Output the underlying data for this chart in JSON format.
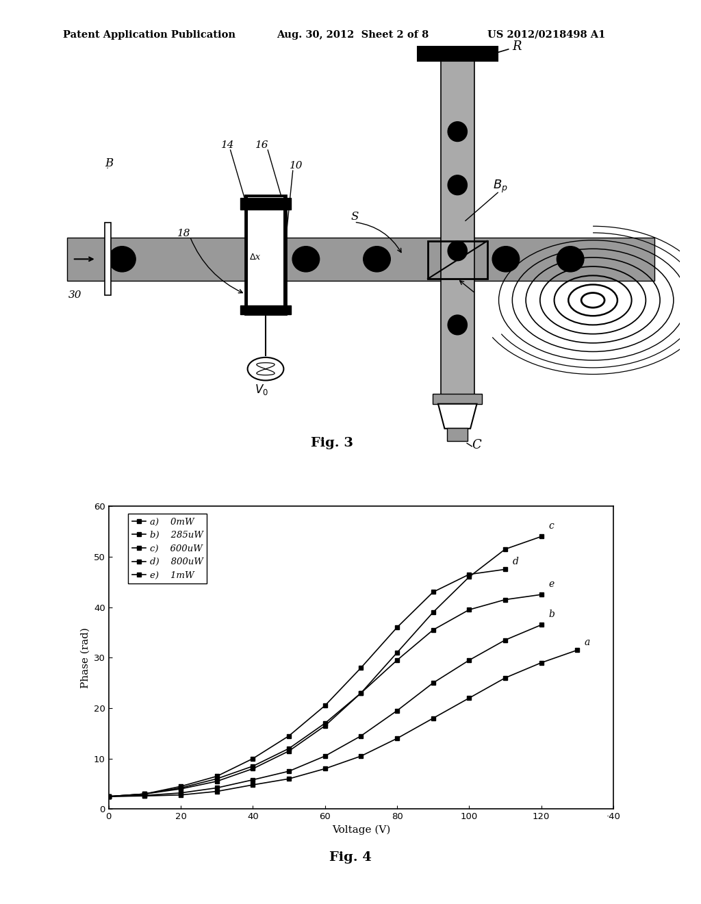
{
  "header_left": "Patent Application Publication",
  "header_middle": "Aug. 30, 2012  Sheet 2 of 8",
  "header_right": "US 2012/0218498 A1",
  "fig3_caption": "Fig. 3",
  "fig4_caption": "Fig. 4",
  "graph_xlabel": "Voltage (V)",
  "graph_ylabel": "Phase (rad)",
  "graph_xlim": [
    0,
    140
  ],
  "graph_ylim": [
    0,
    60
  ],
  "graph_xticks": [
    0,
    20,
    40,
    60,
    80,
    100,
    120,
    140
  ],
  "graph_xtick_labels": [
    "0",
    "20",
    "40",
    "60",
    "80",
    "100",
    "120",
    "·40"
  ],
  "graph_yticks": [
    0,
    10,
    20,
    30,
    40,
    50,
    60
  ],
  "legend_labels": [
    "a)    0mW",
    "b)    285uW",
    "c)    600uW",
    "d)    800uW",
    "e)    1mW"
  ],
  "series_a_x": [
    0,
    10,
    20,
    30,
    40,
    50,
    60,
    70,
    80,
    90,
    100,
    110,
    120,
    130
  ],
  "series_a_y": [
    2.5,
    2.6,
    2.8,
    3.5,
    4.8,
    6.0,
    8.0,
    10.5,
    14.0,
    18.0,
    22.0,
    26.0,
    29.0,
    31.5
  ],
  "series_b_x": [
    0,
    10,
    20,
    30,
    40,
    50,
    60,
    70,
    80,
    90,
    100,
    110,
    120
  ],
  "series_b_y": [
    2.5,
    2.7,
    3.2,
    4.2,
    5.8,
    7.5,
    10.5,
    14.5,
    19.5,
    25.0,
    29.5,
    33.5,
    36.5
  ],
  "series_c_x": [
    0,
    10,
    20,
    30,
    40,
    50,
    60,
    70,
    80,
    90,
    100,
    110,
    120
  ],
  "series_c_y": [
    2.5,
    3.0,
    4.0,
    5.5,
    8.0,
    11.5,
    16.5,
    23.0,
    31.0,
    39.0,
    46.0,
    51.5,
    54.0
  ],
  "series_d_x": [
    0,
    10,
    20,
    30,
    40,
    50,
    60,
    70,
    80,
    90,
    100,
    110
  ],
  "series_d_y": [
    2.5,
    3.0,
    4.5,
    6.5,
    10.0,
    14.5,
    20.5,
    28.0,
    36.0,
    43.0,
    46.5,
    47.5
  ],
  "series_e_x": [
    0,
    10,
    20,
    30,
    40,
    50,
    60,
    70,
    80,
    90,
    100,
    110,
    120
  ],
  "series_e_y": [
    2.5,
    3.0,
    4.2,
    6.0,
    8.5,
    12.0,
    17.0,
    23.0,
    29.5,
    35.5,
    39.5,
    41.5,
    42.5
  ],
  "bg_color": "#ffffff"
}
